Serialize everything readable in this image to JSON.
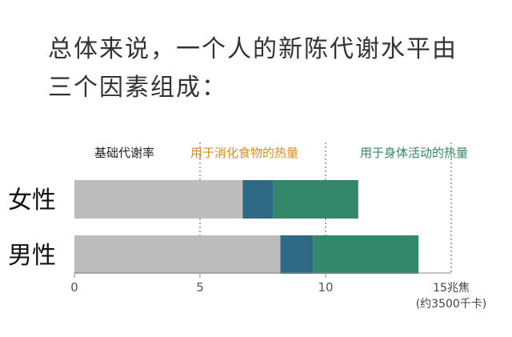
{
  "title_lines": [
    "总体来说，一个人的新陈代谢水平由",
    "三个因素组成："
  ],
  "colors": {
    "bmr": "#bdbcbd",
    "digestion": "#2e6a86",
    "activity": "#33886c",
    "bmr_label": "#222222",
    "digestion_label": "#e08a1e",
    "activity_label": "#2f8a5e",
    "axis": "#888888",
    "text": "#333333"
  },
  "chart_data": {
    "type": "bar",
    "orientation": "horizontal",
    "stacked": true,
    "categories": [
      "女性",
      "男性"
    ],
    "series": [
      {
        "name": "基础代谢率",
        "values": [
          6.7,
          8.2
        ]
      },
      {
        "name": "用于消化食物的热量",
        "values": [
          1.2,
          1.3
        ]
      },
      {
        "name": "用于身体活动的热量",
        "values": [
          3.4,
          4.2
        ]
      }
    ],
    "x_ticks": [
      0,
      5,
      10
    ],
    "x_end_label": [
      "15兆焦",
      "(约3500千卡)"
    ],
    "xlim": [
      0,
      15
    ],
    "gridlines": "dashed-vertical",
    "legend_position": "top"
  }
}
